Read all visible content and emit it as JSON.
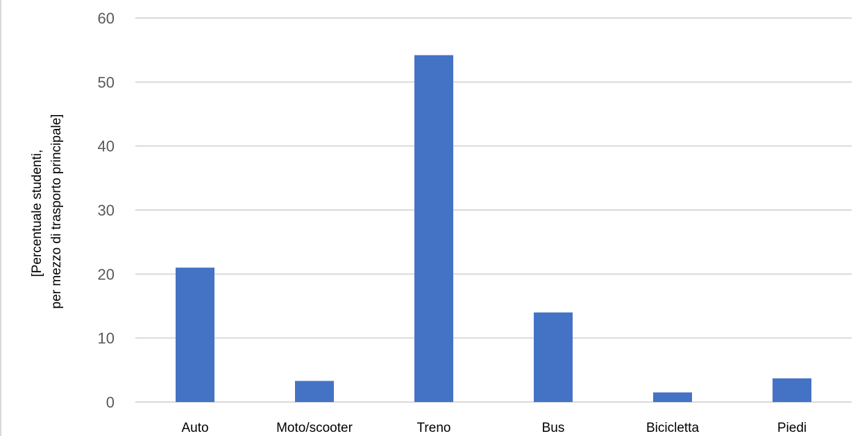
{
  "chart_data": {
    "type": "bar",
    "categories": [
      "Auto",
      "Moto/scooter",
      "Treno",
      "Bus",
      "Bicicletta",
      "Piedi"
    ],
    "values": [
      21,
      3.3,
      54.2,
      14,
      1.5,
      3.7
    ],
    "title": "",
    "xlabel": "",
    "ylabel_lines": [
      "[Percentuale studenti,",
      "per mezzo di trasporto principale]"
    ],
    "ylim": [
      0,
      60
    ],
    "yticks": [
      0,
      10,
      20,
      30,
      40,
      50,
      60
    ],
    "grid": true,
    "legend": "none",
    "colors": {
      "bar": "#4472c4",
      "grid": "#d9d9d9",
      "tick_text": "#595959"
    }
  }
}
